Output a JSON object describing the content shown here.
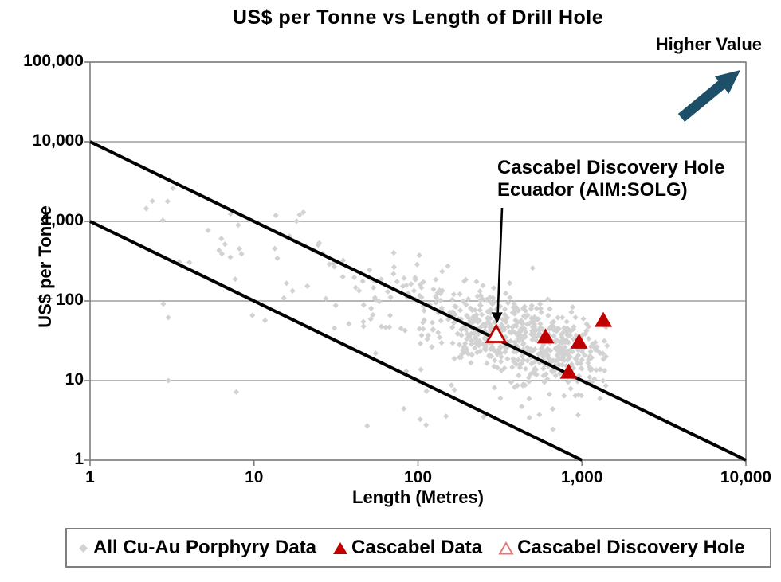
{
  "title": "US$ per Tonne vs Length of Drill Hole",
  "higher_value": {
    "label": "Higher Value",
    "arrow_color": "#1d5068"
  },
  "annotation": {
    "line1": "Cascabel Discovery Hole",
    "line2": "Ecuador (AIM:SOLG)",
    "target_point": [
      300,
      52
    ]
  },
  "legend": [
    {
      "label": "All Cu-Au Porphyry Data",
      "marker": "diamond",
      "color": "#d2d2d2"
    },
    {
      "label": "Cascabel Data",
      "marker": "triangle-filled",
      "color": "#c00000"
    },
    {
      "label": "Cascabel Discovery Hole",
      "marker": "triangle-open",
      "color": "#e07878"
    }
  ],
  "chart_data": {
    "type": "scatter",
    "title": "US$ per Tonne vs Length of Drill Hole",
    "xlabel": "Length (Metres)",
    "ylabel": "US$ per Tonne",
    "x_scale": "log",
    "y_scale": "log",
    "xlim": [
      1,
      10000
    ],
    "ylim": [
      1,
      100000
    ],
    "x_ticks": [
      "1",
      "10",
      "100",
      "1,000",
      "10,000"
    ],
    "y_ticks": [
      "1",
      "10",
      "100",
      "1,000",
      "10,000",
      "100,000"
    ],
    "grid": "horizontal-only",
    "grid_color": "#8c8c8c",
    "frame_color": "#7f7f7f",
    "trend_lines": [
      {
        "name": "upper-envelope",
        "from": [
          1,
          10000
        ],
        "to": [
          10000,
          1
        ],
        "color": "#000000"
      },
      {
        "name": "lower-envelope",
        "from": [
          1,
          1000
        ],
        "to": [
          1000,
          1
        ],
        "color": "#000000"
      }
    ],
    "series": [
      {
        "name": "All Cu-Au Porphyry Data",
        "marker": "diamond",
        "color": "#d2d2d2",
        "seed": 13,
        "cloud_clusters": [
          {
            "count": 600,
            "logx_mean": 2.62,
            "logx_sd": 0.33,
            "logx_range": [
              0.75,
              3.17
            ],
            "logy_at_mean": 1.52,
            "logy_slope": -0.55,
            "logy_sd": 0.25,
            "logy_range": [
              0.45,
              3.1
            ]
          },
          {
            "count": 85,
            "logx_mean": 1.55,
            "logx_sd": 0.62,
            "logx_range": [
              0.28,
              2.9
            ],
            "logy_at_mean": 2.2,
            "logy_slope": -0.35,
            "logy_sd": 0.38,
            "logy_range": [
              0.8,
              3.45
            ]
          },
          {
            "count": 18,
            "logx_mean": 2.5,
            "logx_sd": 0.4,
            "logx_range": [
              1.6,
              3.0
            ],
            "logy_at_mean": 0.75,
            "logy_slope": -0.1,
            "logy_sd": 0.22,
            "logy_range": [
              0.35,
              1.05
            ]
          }
        ],
        "notable_points": [
          [
            2.4,
            1800
          ],
          [
            2.2,
            1450
          ],
          [
            3.2,
            2600
          ],
          [
            20,
            1300
          ],
          [
            3,
            62
          ],
          [
            3,
            10
          ],
          [
            7.8,
            7.2
          ],
          [
            49,
            2.7
          ]
        ]
      },
      {
        "name": "Cascabel Data",
        "marker": "triangle-filled",
        "color": "#c00000",
        "points": [
          [
            600,
            36
          ],
          [
            830,
            13
          ],
          [
            960,
            31
          ],
          [
            1350,
            58
          ]
        ]
      },
      {
        "name": "Cascabel Discovery Hole",
        "marker": "triangle-open",
        "color": "#c00000",
        "fill": "#ffffff",
        "points": [
          [
            300,
            38
          ]
        ]
      }
    ]
  }
}
